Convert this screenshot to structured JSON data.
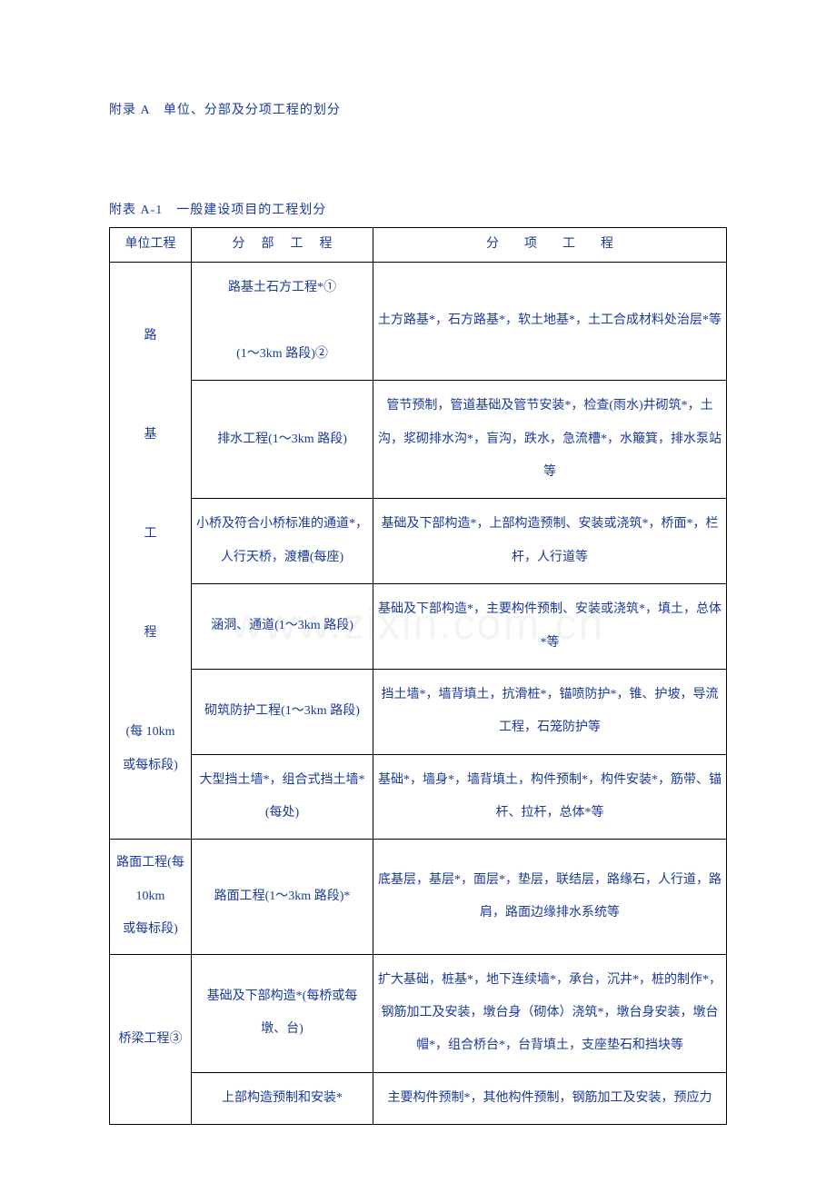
{
  "page": {
    "title": "附录 A　单位、分部及分项工程的划分",
    "table_title": "附表 A-1　一般建设项目的工程划分"
  },
  "watermark": "www.zixin.com.cn",
  "headers": {
    "col1": "单位工程",
    "col2": "分部工程",
    "col3": "分项工程"
  },
  "rows": [
    {
      "unit": "路\n\n\n基\n\n\n工\n\n\n程\n\n\n(每 10km\n或每标段)",
      "unit_rowspan": 6,
      "sub": "路基土石方工程*①\n\n(1～3km 路段)②",
      "item": "土方路基*，石方路基*，软土地基*，土工合成材料处治层*等"
    },
    {
      "sub": "排水工程(1～3km 路段)",
      "item": "管节预制，管道基础及管节安装*，检查(雨水)井砌筑*，土沟，浆砌排水沟*，盲沟，跌水，急流槽*，水簸箕，排水泵站等"
    },
    {
      "sub": "小桥及符合小桥标准的通道*，人行天桥，渡槽(每座)",
      "item": "基础及下部构造*，上部构造预制、安装或浇筑*，桥面*，栏杆，人行道等"
    },
    {
      "sub": "涵洞、通道(1～3km 路段)",
      "item": "基础及下部构造*，主要构件预制、安装或浇筑*，填土，总体*等"
    },
    {
      "sub": "砌筑防护工程(1～3km 路段)",
      "item": "挡土墙*，墙背填土，抗滑桩*，锚喷防护*，锥、护坡，导流工程，石笼防护等"
    },
    {
      "sub": "大型挡土墙*，组合式挡土墙*(每处)",
      "item": "基础*，墙身*，墙背填土，构件预制*，构件安装*，筋带、锚杆、拉杆，总体*等"
    },
    {
      "unit": "路面工程(每10km\n或每标段)",
      "unit_rowspan": 1,
      "sub": "路面工程(1～3km 路段)*",
      "item": "底基层，基层*，面层*，垫层，联结层，路缘石，人行道，路肩，路面边缘排水系统等"
    },
    {
      "unit": "桥梁工程③",
      "unit_rowspan": 2,
      "sub": "基础及下部构造*(每桥或每墩、台)",
      "item": "扩大基础，桩基*，地下连续墙*，承台，沉井*，桩的制作*，钢筋加工及安装，墩台身（砌体）浇筑*，墩台身安装，墩台帽*，组合桥台*，台背填土，支座垫石和挡块等"
    },
    {
      "sub": "上部构造预制和安装*",
      "item": "主要构件预制*，其他构件预制，钢筋加工及安装，预应力"
    }
  ],
  "style": {
    "text_color": "#1a3a9a",
    "border_color": "#000000",
    "bg": "#ffffff",
    "watermark_color": "#e0e0e0",
    "font_size": 14,
    "col_widths": {
      "col1": 90,
      "col2": 200
    }
  }
}
